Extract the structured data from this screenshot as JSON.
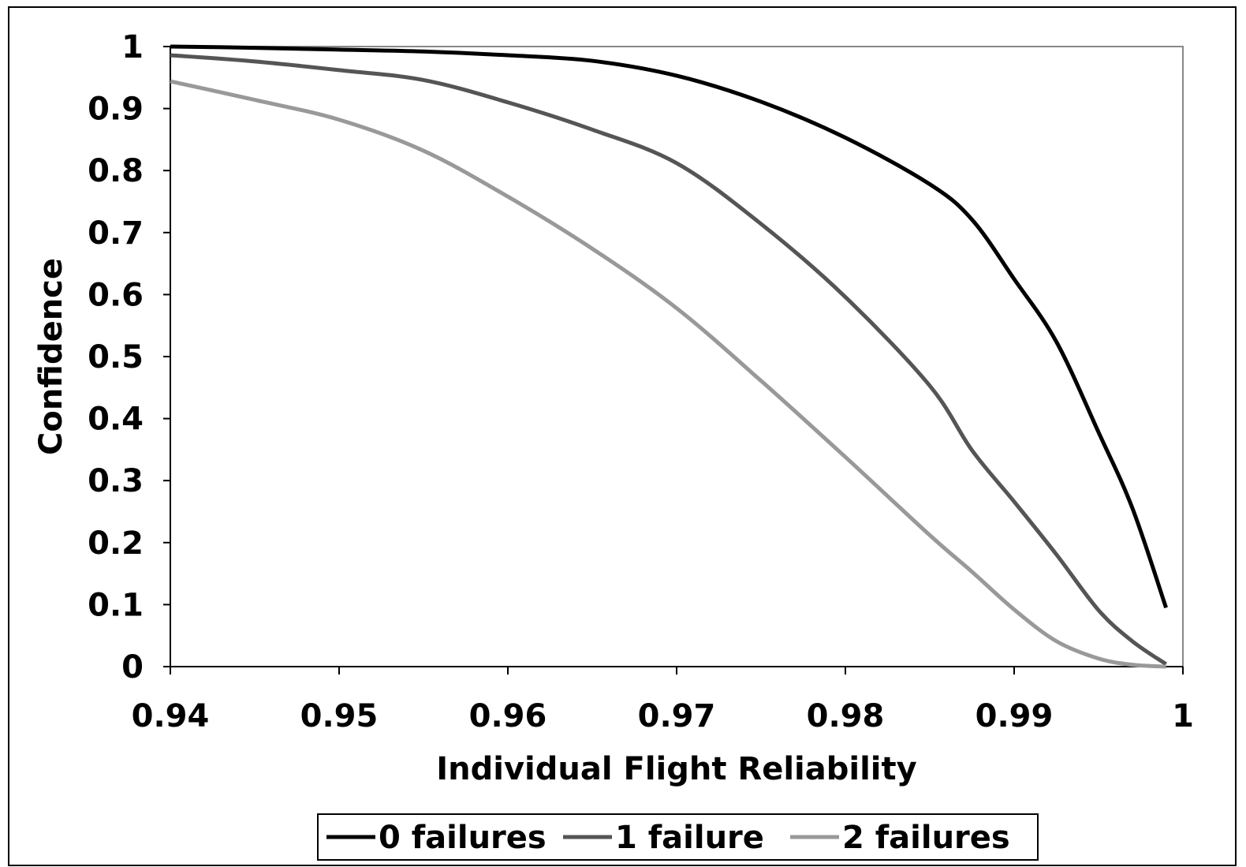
{
  "chart_data": {
    "type": "line",
    "xlabel": "Individual Flight Reliability",
    "ylabel": "Confidence",
    "xlim": [
      0.94,
      1.0
    ],
    "ylim": [
      0,
      1
    ],
    "x_ticks": [
      "0.94",
      "0.95",
      "0.96",
      "0.97",
      "0.98",
      "0.99",
      "1"
    ],
    "y_ticks": [
      "0",
      "0.1",
      "0.2",
      "0.3",
      "0.4",
      "0.5",
      "0.6",
      "0.7",
      "0.8",
      "0.9",
      "1"
    ],
    "grid": false,
    "legend_position": "bottom",
    "x": [
      0.94,
      0.945,
      0.95,
      0.955,
      0.96,
      0.965,
      0.97,
      0.975,
      0.98,
      0.985,
      0.9875,
      0.99,
      0.9925,
      0.995,
      0.997,
      0.999
    ],
    "series": [
      {
        "name": "0 failures",
        "color": "#000000",
        "values": [
          1.0,
          0.998,
          0.995,
          0.992,
          0.986,
          0.977,
          0.953,
          0.911,
          0.853,
          0.778,
          0.721,
          0.625,
          0.524,
          0.378,
          0.256,
          0.095
        ]
      },
      {
        "name": "1 failure",
        "color": "#555555",
        "values": [
          0.986,
          0.976,
          0.962,
          0.946,
          0.91,
          0.866,
          0.812,
          0.714,
          0.596,
          0.453,
          0.349,
          0.266,
          0.181,
          0.091,
          0.041,
          0.004
        ]
      },
      {
        "name": "2 failures",
        "color": "#999999",
        "values": [
          0.944,
          0.914,
          0.882,
          0.832,
          0.758,
          0.674,
          0.578,
          0.461,
          0.338,
          0.212,
          0.153,
          0.092,
          0.041,
          0.013,
          0.003,
          0.0
        ]
      }
    ]
  }
}
